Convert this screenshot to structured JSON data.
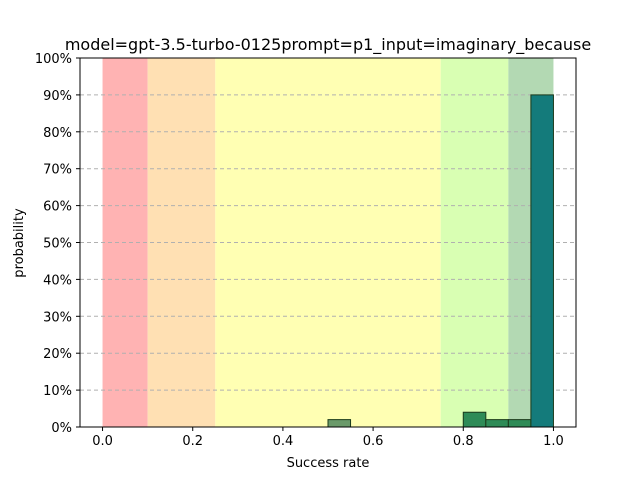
{
  "chart_data": {
    "type": "bar",
    "title": "model=gpt-3.5-turbo-0125prompt=p1_input=imaginary_because",
    "xlabel": "Success rate",
    "ylabel": "probability",
    "xlim": [
      -0.05,
      1.05
    ],
    "ylim": [
      0,
      1.0
    ],
    "x_ticks": [
      0.0,
      0.2,
      0.4,
      0.6,
      0.8,
      1.0
    ],
    "x_tick_labels": [
      "0.0",
      "0.2",
      "0.4",
      "0.6",
      "0.8",
      "1.0"
    ],
    "y_ticks": [
      0,
      0.1,
      0.2,
      0.3,
      0.4,
      0.5,
      0.6,
      0.7,
      0.8,
      0.9,
      1.0
    ],
    "y_tick_labels": [
      "0%",
      "10%",
      "20%",
      "30%",
      "40%",
      "50%",
      "60%",
      "70%",
      "80%",
      "90%",
      "100%"
    ],
    "grid": "horizontal dashed",
    "bands": [
      {
        "x0": 0.0,
        "x1": 0.1,
        "color": "#ffb3b3"
      },
      {
        "x0": 0.1,
        "x1": 0.25,
        "color": "#ffe0b3"
      },
      {
        "x0": 0.25,
        "x1": 0.75,
        "color": "#ffffb3"
      },
      {
        "x0": 0.75,
        "x1": 0.9,
        "color": "#d9ffb3"
      },
      {
        "x0": 0.9,
        "x1": 1.0,
        "color": "#b3d9b3"
      }
    ],
    "bars": [
      {
        "x0": 0.5,
        "x1": 0.55,
        "value": 0.02,
        "color": "#6a9a6a"
      },
      {
        "x0": 0.8,
        "x1": 0.85,
        "value": 0.04,
        "color": "#2e8b57"
      },
      {
        "x0": 0.85,
        "x1": 0.9,
        "value": 0.02,
        "color": "#2e8b57"
      },
      {
        "x0": 0.9,
        "x1": 0.95,
        "value": 0.02,
        "color": "#2e8b57"
      },
      {
        "x0": 0.95,
        "x1": 1.0,
        "value": 0.9,
        "color": "#147b7b"
      }
    ]
  }
}
